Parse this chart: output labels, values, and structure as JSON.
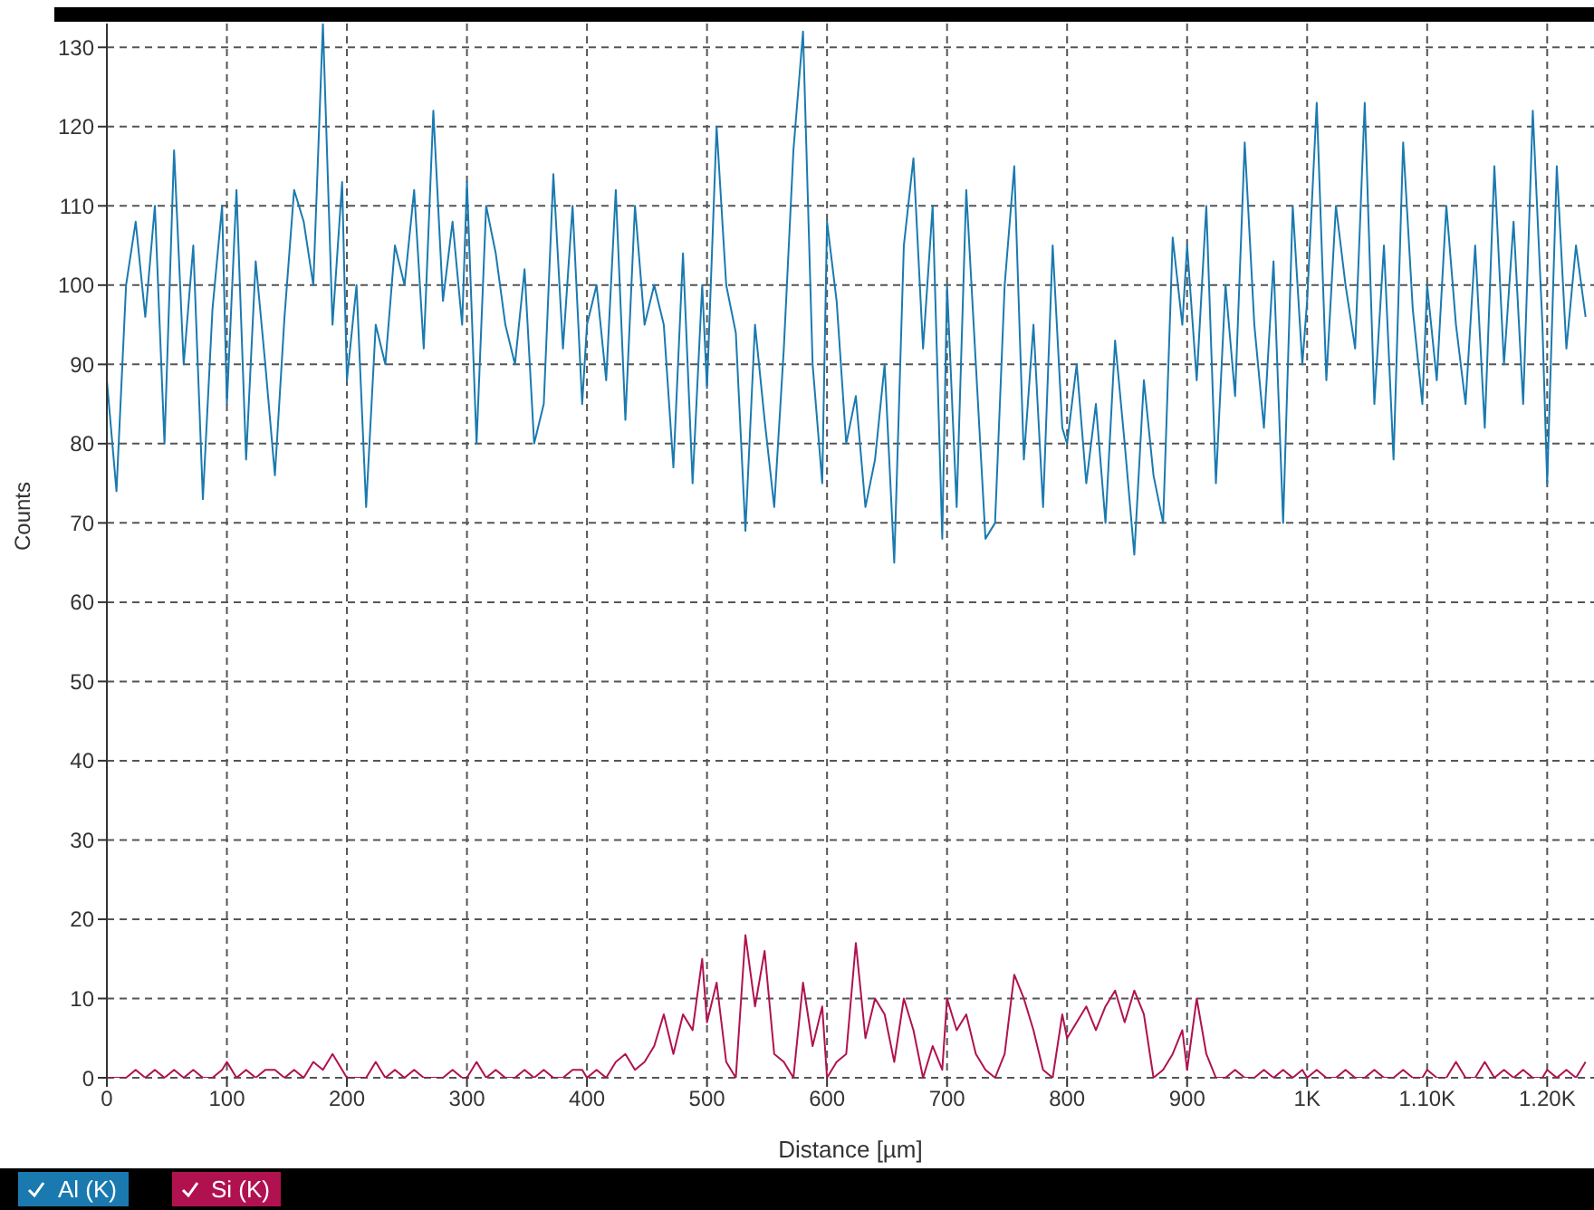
{
  "chart_data": {
    "type": "line",
    "xlabel": "Distance [µm]",
    "ylabel": "Counts",
    "xlim": [
      0,
      1239
    ],
    "ylim": [
      0,
      133
    ],
    "xticks": [
      0,
      100,
      200,
      300,
      400,
      500,
      600,
      700,
      800,
      900,
      {
        "value": 1000,
        "label": "1K"
      },
      {
        "value": 1100,
        "label": "1.10K"
      },
      {
        "value": 1200,
        "label": "1.20K"
      }
    ],
    "yticks": [
      0,
      10,
      20,
      30,
      40,
      50,
      60,
      70,
      80,
      90,
      100,
      110,
      120,
      130
    ],
    "grid": true,
    "legend": "bottom",
    "marker": "none",
    "line_style": "solid",
    "x": [
      0,
      8,
      16,
      24,
      32,
      40,
      48,
      56,
      64,
      72,
      80,
      88,
      96,
      100,
      108,
      116,
      124,
      132,
      140,
      148,
      156,
      164,
      172,
      180,
      188,
      196,
      200,
      208,
      216,
      224,
      232,
      240,
      248,
      256,
      264,
      272,
      280,
      288,
      296,
      300,
      308,
      316,
      324,
      332,
      340,
      348,
      356,
      364,
      372,
      380,
      388,
      396,
      400,
      408,
      416,
      424,
      432,
      440,
      448,
      456,
      464,
      472,
      480,
      488,
      496,
      500,
      508,
      516,
      524,
      532,
      540,
      548,
      556,
      564,
      572,
      580,
      588,
      596,
      600,
      608,
      616,
      624,
      632,
      640,
      648,
      656,
      664,
      672,
      680,
      688,
      696,
      700,
      708,
      716,
      724,
      732,
      740,
      748,
      756,
      764,
      772,
      780,
      788,
      796,
      800,
      808,
      816,
      824,
      832,
      840,
      848,
      856,
      864,
      872,
      880,
      888,
      896,
      900,
      908,
      916,
      924,
      932,
      940,
      948,
      956,
      964,
      972,
      980,
      988,
      996,
      1000,
      1008,
      1016,
      1024,
      1032,
      1040,
      1048,
      1056,
      1064,
      1072,
      1080,
      1088,
      1096,
      1100,
      1108,
      1116,
      1124,
      1132,
      1140,
      1148,
      1156,
      1164,
      1172,
      1180,
      1188,
      1196,
      1200,
      1208,
      1216,
      1224,
      1232
    ],
    "series": [
      {
        "name": "Al (K)",
        "color": "#1a7ab0",
        "values": [
          88,
          74,
          100,
          108,
          96,
          110,
          80,
          117,
          90,
          105,
          73,
          97,
          110,
          85,
          112,
          78,
          103,
          90,
          76,
          96,
          112,
          108,
          100,
          133,
          95,
          113,
          88,
          100,
          72,
          95,
          90,
          105,
          100,
          112,
          92,
          122,
          98,
          108,
          95,
          113,
          80,
          110,
          104,
          95,
          90,
          102,
          80,
          85,
          114,
          92,
          110,
          85,
          95,
          100,
          88,
          112,
          83,
          110,
          95,
          100,
          95,
          77,
          104,
          75,
          100,
          87,
          120,
          100,
          94,
          69,
          95,
          83,
          72,
          92,
          117,
          132,
          90,
          75,
          108,
          98,
          80,
          86,
          72,
          78,
          90,
          65,
          105,
          116,
          92,
          110,
          68,
          100,
          72,
          112,
          90,
          68,
          70,
          100,
          115,
          78,
          95,
          72,
          105,
          82,
          80,
          90,
          75,
          85,
          70,
          93,
          80,
          66,
          88,
          76,
          70,
          106,
          95,
          105,
          88,
          110,
          75,
          100,
          86,
          118,
          95,
          82,
          103,
          70,
          110,
          90,
          98,
          123,
          88,
          110,
          100,
          92,
          123,
          85,
          105,
          78,
          118,
          97,
          85,
          100,
          88,
          110,
          95,
          85,
          105,
          82,
          115,
          90,
          108,
          85,
          122,
          95,
          75,
          115,
          92,
          105,
          96
        ]
      },
      {
        "name": "Si (K)",
        "color": "#b0124f",
        "values": [
          0,
          0,
          0,
          1,
          0,
          1,
          0,
          1,
          0,
          1,
          0,
          0,
          1,
          2,
          0,
          1,
          0,
          1,
          1,
          0,
          1,
          0,
          2,
          1,
          3,
          1,
          0,
          0,
          0,
          2,
          0,
          1,
          0,
          1,
          0,
          0,
          0,
          1,
          0,
          0,
          2,
          0,
          1,
          0,
          0,
          1,
          0,
          1,
          0,
          0,
          1,
          1,
          0,
          1,
          0,
          2,
          3,
          1,
          2,
          4,
          8,
          3,
          8,
          6,
          15,
          7,
          12,
          2,
          0,
          18,
          9,
          16,
          3,
          2,
          0,
          12,
          4,
          9,
          0,
          2,
          3,
          17,
          5,
          10,
          8,
          2,
          10,
          6,
          0,
          4,
          1,
          10,
          6,
          8,
          3,
          1,
          0,
          3,
          13,
          10,
          6,
          1,
          0,
          8,
          5,
          7,
          9,
          6,
          9,
          11,
          7,
          11,
          8,
          0,
          1,
          3,
          6,
          1,
          10,
          3,
          0,
          0,
          1,
          0,
          0,
          1,
          0,
          1,
          0,
          1,
          0,
          1,
          0,
          0,
          1,
          0,
          0,
          1,
          0,
          0,
          1,
          0,
          0,
          1,
          0,
          0,
          2,
          0,
          0,
          2,
          0,
          1,
          0,
          1,
          0,
          0,
          1,
          0,
          1,
          0,
          2
        ]
      }
    ]
  }
}
